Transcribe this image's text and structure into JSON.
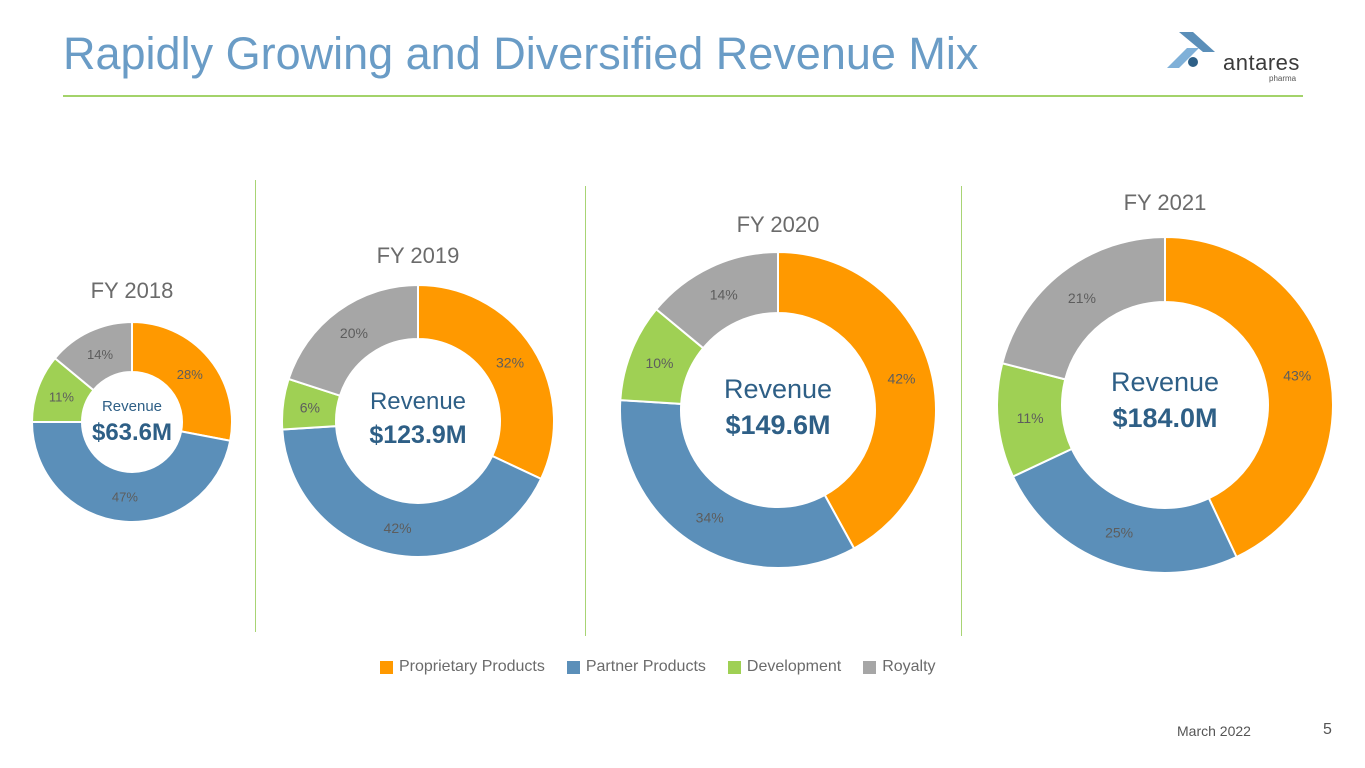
{
  "title": "Rapidly Growing and Diversified Revenue Mix",
  "logo": {
    "brand": "antares",
    "sub": "pharma"
  },
  "colors": {
    "proprietary": "#ff9900",
    "partner": "#5b8fb9",
    "development": "#9fd054",
    "royalty": "#a6a6a6",
    "title": "#6a9cc6",
    "accent_rule": "#a3d36a",
    "center_text": "#2e5f86"
  },
  "chart_data": {
    "type": "donut",
    "series_names": [
      "Proprietary Products",
      "Partner Products",
      "Development",
      "Royalty"
    ],
    "charts": [
      {
        "title": "FY 2018",
        "center_label": "Revenue",
        "center_value": "$63.6M",
        "values": [
          28,
          47,
          11,
          14
        ],
        "value_labels": [
          "28%",
          "47%",
          "11%",
          "14%"
        ]
      },
      {
        "title": "FY 2019",
        "center_label": "Revenue",
        "center_value": "$123.9M",
        "values": [
          32,
          42,
          6,
          20
        ],
        "value_labels": [
          "32%",
          "42%",
          "6%",
          "20%"
        ]
      },
      {
        "title": "FY 2020",
        "center_label": "Revenue",
        "center_value": "$149.6M",
        "values": [
          42,
          34,
          10,
          14
        ],
        "value_labels": [
          "42%",
          "34%",
          "10%",
          "14%"
        ]
      },
      {
        "title": "FY 2021",
        "center_label": "Revenue",
        "center_value": "$184.0M",
        "values": [
          43,
          25,
          11,
          21
        ],
        "value_labels": [
          "43%",
          "25%",
          "11%",
          "21%"
        ]
      }
    ]
  },
  "legend": [
    {
      "label": "Proprietary Products",
      "color": "#ff9900"
    },
    {
      "label": "Partner Products",
      "color": "#5b8fb9"
    },
    {
      "label": "Development",
      "color": "#9fd054"
    },
    {
      "label": "Royalty",
      "color": "#a6a6a6"
    }
  ],
  "footer": {
    "date": "March 2022",
    "page": "5"
  }
}
